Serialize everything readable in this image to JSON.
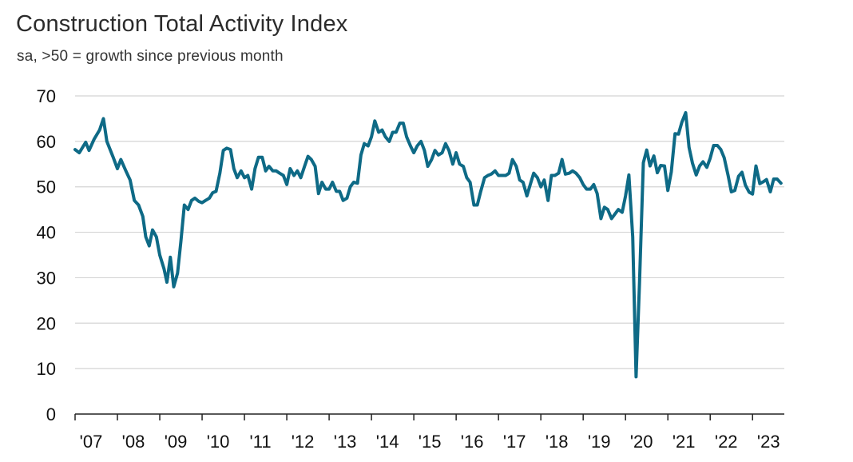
{
  "chart_data": {
    "type": "line",
    "title": "Construction Total Activity Index",
    "subtitle": "sa, >50 = growth since previous month",
    "xlabel": "",
    "ylabel": "",
    "ylim": [
      0,
      70
    ],
    "yticks": [
      0,
      10,
      20,
      30,
      40,
      50,
      60,
      70
    ],
    "xlim": [
      2007.0,
      2023.75
    ],
    "xticks": [
      {
        "value": 2007,
        "label": "'07"
      },
      {
        "value": 2008,
        "label": "'08"
      },
      {
        "value": 2009,
        "label": "'09"
      },
      {
        "value": 2010,
        "label": "'10"
      },
      {
        "value": 2011,
        "label": "'11"
      },
      {
        "value": 2012,
        "label": "'12"
      },
      {
        "value": 2013,
        "label": "'13"
      },
      {
        "value": 2014,
        "label": "'14"
      },
      {
        "value": 2015,
        "label": "'15"
      },
      {
        "value": 2016,
        "label": "'16"
      },
      {
        "value": 2017,
        "label": "'17"
      },
      {
        "value": 2018,
        "label": "'18"
      },
      {
        "value": 2019,
        "label": "'19"
      },
      {
        "value": 2020,
        "label": "'20"
      },
      {
        "value": 2021,
        "label": "'21"
      },
      {
        "value": 2022,
        "label": "'22"
      },
      {
        "value": 2023,
        "label": "'23"
      }
    ],
    "grid": "horizontal",
    "line_color": "#0e6a86",
    "grid_color": "#d4d4d4",
    "series": [
      {
        "points": [
          [
            2007.0,
            58.2
          ],
          [
            2007.1,
            57.5
          ],
          [
            2007.25,
            59.8
          ],
          [
            2007.33,
            58.0
          ],
          [
            2007.45,
            60.5
          ],
          [
            2007.58,
            62.5
          ],
          [
            2007.67,
            65.0
          ],
          [
            2007.75,
            60.0
          ],
          [
            2007.9,
            56.5
          ],
          [
            2008.0,
            54.0
          ],
          [
            2008.08,
            56.0
          ],
          [
            2008.2,
            53.5
          ],
          [
            2008.3,
            51.5
          ],
          [
            2008.4,
            47.0
          ],
          [
            2008.5,
            46.0
          ],
          [
            2008.6,
            43.5
          ],
          [
            2008.67,
            39.0
          ],
          [
            2008.75,
            37.0
          ],
          [
            2008.83,
            40.5
          ],
          [
            2008.92,
            39.0
          ],
          [
            2009.0,
            35.0
          ],
          [
            2009.1,
            32.0
          ],
          [
            2009.17,
            29.0
          ],
          [
            2009.25,
            34.5
          ],
          [
            2009.33,
            28.0
          ],
          [
            2009.42,
            31.0
          ],
          [
            2009.5,
            38.0
          ],
          [
            2009.58,
            46.0
          ],
          [
            2009.67,
            45.0
          ],
          [
            2009.75,
            47.0
          ],
          [
            2009.83,
            47.5
          ],
          [
            2009.92,
            46.8
          ],
          [
            2010.0,
            46.5
          ],
          [
            2010.08,
            47.0
          ],
          [
            2010.17,
            47.5
          ],
          [
            2010.25,
            48.7
          ],
          [
            2010.33,
            49.0
          ],
          [
            2010.42,
            53.0
          ],
          [
            2010.5,
            58.0
          ],
          [
            2010.58,
            58.5
          ],
          [
            2010.67,
            58.2
          ],
          [
            2010.75,
            54.0
          ],
          [
            2010.83,
            52.0
          ],
          [
            2010.92,
            53.5
          ],
          [
            2011.0,
            52.0
          ],
          [
            2011.08,
            52.5
          ],
          [
            2011.17,
            49.5
          ],
          [
            2011.25,
            54.0
          ],
          [
            2011.33,
            56.5
          ],
          [
            2011.42,
            56.5
          ],
          [
            2011.5,
            53.5
          ],
          [
            2011.58,
            54.5
          ],
          [
            2011.67,
            53.5
          ],
          [
            2011.75,
            53.5
          ],
          [
            2011.83,
            53.0
          ],
          [
            2011.92,
            52.5
          ],
          [
            2012.0,
            50.5
          ],
          [
            2012.08,
            54.0
          ],
          [
            2012.17,
            52.5
          ],
          [
            2012.25,
            53.5
          ],
          [
            2012.33,
            52.0
          ],
          [
            2012.42,
            54.5
          ],
          [
            2012.5,
            56.7
          ],
          [
            2012.58,
            56.0
          ],
          [
            2012.67,
            54.5
          ],
          [
            2012.75,
            48.5
          ],
          [
            2012.83,
            51.0
          ],
          [
            2012.92,
            49.5
          ],
          [
            2013.0,
            49.5
          ],
          [
            2013.08,
            51.0
          ],
          [
            2013.17,
            49.0
          ],
          [
            2013.25,
            49.0
          ],
          [
            2013.33,
            47.0
          ],
          [
            2013.42,
            47.5
          ],
          [
            2013.5,
            50.0
          ],
          [
            2013.58,
            51.0
          ],
          [
            2013.67,
            50.8
          ],
          [
            2013.75,
            57.0
          ],
          [
            2013.83,
            59.5
          ],
          [
            2013.92,
            59.0
          ],
          [
            2014.0,
            61.0
          ],
          [
            2014.08,
            64.5
          ],
          [
            2014.17,
            62.0
          ],
          [
            2014.25,
            62.5
          ],
          [
            2014.33,
            61.0
          ],
          [
            2014.42,
            60.0
          ],
          [
            2014.5,
            62.0
          ],
          [
            2014.58,
            62.0
          ],
          [
            2014.67,
            64.0
          ],
          [
            2014.75,
            64.0
          ],
          [
            2014.83,
            61.0
          ],
          [
            2014.92,
            59.0
          ],
          [
            2015.0,
            57.5
          ],
          [
            2015.08,
            59.0
          ],
          [
            2015.17,
            60.0
          ],
          [
            2015.25,
            58.0
          ],
          [
            2015.33,
            54.5
          ],
          [
            2015.42,
            56.0
          ],
          [
            2015.5,
            58.0
          ],
          [
            2015.58,
            57.0
          ],
          [
            2015.67,
            57.5
          ],
          [
            2015.75,
            59.5
          ],
          [
            2015.83,
            58.0
          ],
          [
            2015.92,
            55.0
          ],
          [
            2016.0,
            57.5
          ],
          [
            2016.08,
            55.0
          ],
          [
            2016.17,
            54.5
          ],
          [
            2016.25,
            52.0
          ],
          [
            2016.33,
            51.0
          ],
          [
            2016.42,
            46.0
          ],
          [
            2016.5,
            46.0
          ],
          [
            2016.58,
            49.0
          ],
          [
            2016.67,
            52.0
          ],
          [
            2016.75,
            52.5
          ],
          [
            2016.83,
            52.8
          ],
          [
            2016.92,
            53.5
          ],
          [
            2017.0,
            52.5
          ],
          [
            2017.08,
            52.5
          ],
          [
            2017.17,
            52.5
          ],
          [
            2017.25,
            53.0
          ],
          [
            2017.33,
            56.0
          ],
          [
            2017.42,
            54.5
          ],
          [
            2017.5,
            51.5
          ],
          [
            2017.58,
            51.0
          ],
          [
            2017.67,
            48.0
          ],
          [
            2017.75,
            50.5
          ],
          [
            2017.83,
            53.0
          ],
          [
            2017.92,
            52.0
          ],
          [
            2018.0,
            50.0
          ],
          [
            2018.08,
            51.5
          ],
          [
            2018.17,
            47.0
          ],
          [
            2018.25,
            52.5
          ],
          [
            2018.33,
            52.5
          ],
          [
            2018.42,
            53.0
          ],
          [
            2018.5,
            56.0
          ],
          [
            2018.58,
            52.8
          ],
          [
            2018.67,
            53.0
          ],
          [
            2018.75,
            53.5
          ],
          [
            2018.83,
            53.0
          ],
          [
            2018.92,
            52.0
          ],
          [
            2019.0,
            50.5
          ],
          [
            2019.08,
            49.5
          ],
          [
            2019.17,
            49.5
          ],
          [
            2019.25,
            50.5
          ],
          [
            2019.33,
            48.5
          ],
          [
            2019.42,
            43.0
          ],
          [
            2019.5,
            45.5
          ],
          [
            2019.58,
            45.0
          ],
          [
            2019.67,
            43.0
          ],
          [
            2019.75,
            44.0
          ],
          [
            2019.83,
            45.0
          ],
          [
            2019.92,
            44.4
          ],
          [
            2020.0,
            48.0
          ],
          [
            2020.08,
            52.6
          ],
          [
            2020.17,
            39.0
          ],
          [
            2020.25,
            8.2
          ],
          [
            2020.33,
            28.9
          ],
          [
            2020.42,
            55.3
          ],
          [
            2020.5,
            58.1
          ],
          [
            2020.58,
            54.6
          ],
          [
            2020.67,
            56.8
          ],
          [
            2020.75,
            53.1
          ],
          [
            2020.83,
            54.7
          ],
          [
            2020.92,
            54.6
          ],
          [
            2021.0,
            49.2
          ],
          [
            2021.08,
            53.3
          ],
          [
            2021.17,
            61.7
          ],
          [
            2021.25,
            61.6
          ],
          [
            2021.33,
            64.2
          ],
          [
            2021.42,
            66.3
          ],
          [
            2021.5,
            58.7
          ],
          [
            2021.58,
            55.2
          ],
          [
            2021.67,
            52.6
          ],
          [
            2021.75,
            54.6
          ],
          [
            2021.83,
            55.5
          ],
          [
            2021.92,
            54.3
          ],
          [
            2022.0,
            56.3
          ],
          [
            2022.08,
            59.1
          ],
          [
            2022.17,
            59.1
          ],
          [
            2022.25,
            58.2
          ],
          [
            2022.33,
            56.4
          ],
          [
            2022.42,
            52.6
          ],
          [
            2022.5,
            48.9
          ],
          [
            2022.58,
            49.2
          ],
          [
            2022.67,
            52.3
          ],
          [
            2022.75,
            53.2
          ],
          [
            2022.83,
            50.4
          ],
          [
            2022.92,
            48.8
          ],
          [
            2023.0,
            48.4
          ],
          [
            2023.08,
            54.6
          ],
          [
            2023.17,
            50.7
          ],
          [
            2023.25,
            51.1
          ],
          [
            2023.33,
            51.6
          ],
          [
            2023.42,
            48.9
          ],
          [
            2023.5,
            51.7
          ],
          [
            2023.58,
            51.7
          ],
          [
            2023.67,
            50.8
          ]
        ]
      }
    ]
  }
}
